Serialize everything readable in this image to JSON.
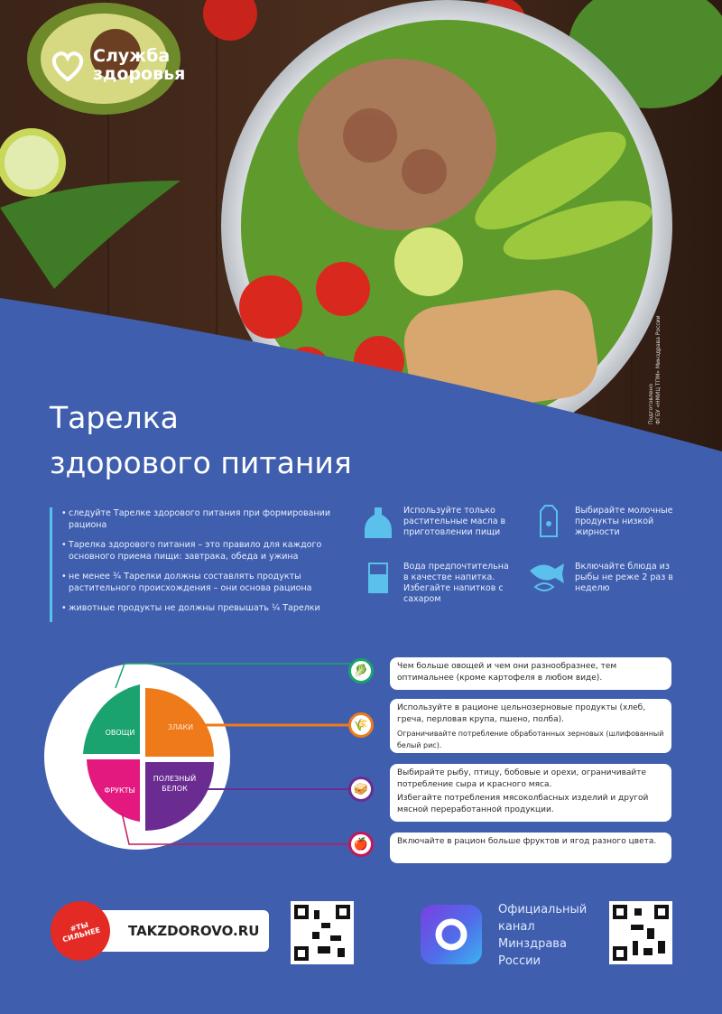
{
  "brand": {
    "name_line1": "Служба",
    "name_line2": "здоровья"
  },
  "credit": {
    "line1": "Подготовлено",
    "line2": "ФГБУ «НМИЦ ТПМ» Минздрава России"
  },
  "title": {
    "line1": "Тарелка",
    "line2": "здорового питания"
  },
  "bullets": [
    "следуйте Тарелке здорового питания при формировании рациона",
    "Тарелка здорового питания – это правило для каждого основного приема пищи: завтрака, обеда и ужина",
    "не менее ¾ Тарелки должны составлять продукты растительного происхождения – они основа рациона",
    "животные продукты не должны превышать ¼ Тарелки"
  ],
  "tips": [
    {
      "icon": "oil-bottle-icon",
      "text": "Используйте только растительные масла в приготовлении пищи"
    },
    {
      "icon": "milk-carton-icon",
      "text": "Выбирайте молочные продукты низкой жирности"
    },
    {
      "icon": "water-glass-icon",
      "text": "Вода предпочтительна в качестве напитка. Избегайте напитков с сахаром"
    },
    {
      "icon": "fish-icon",
      "text": "Включайте блюда из рыбы не реже 2 раз в неделю"
    }
  ],
  "plate": {
    "sections": [
      {
        "label": "ОВОЩИ",
        "color": "#1aa36f"
      },
      {
        "label": "ЗЛАКИ",
        "color": "#ef7a1a"
      },
      {
        "label": "ФРУКТЫ",
        "color": "#e3197f"
      },
      {
        "label": "ПОЛЕЗНЫЙ БЕЛОК",
        "color": "#6a2c91"
      }
    ]
  },
  "advice": [
    {
      "icon": "vegetables-icon",
      "color": "#1aa36f",
      "lines": [
        "Чем больше овощей и чем они разнообразнее, тем оптимальнее (кроме картофеля в любом виде)."
      ]
    },
    {
      "icon": "wheat-icon",
      "color": "#ef7a1a",
      "lines": [
        "Используйте в рационе цельнозерновые продукты (хлеб, греча, перловая крупа, пшено, полба).",
        "Ограничивайте потребление обработанных зерновых (шлифованный белый рис)."
      ]
    },
    {
      "icon": "protein-icon",
      "color": "#6a2c91",
      "lines": [
        "Выбирайте рыбу, птицу, бобовые и орехи, ограничивайте потребление сыра и красного мяса.",
        "Избегайте потребления мясоколбасных изделий и другой мясной переработанной продукции."
      ]
    },
    {
      "icon": "apple-icon",
      "color": "#c2185b",
      "lines": [
        "Включайте в рацион больше фруктов и ягод разного цвета."
      ]
    }
  ],
  "footer": {
    "badge": "#ТЫ СИЛЬНЕЕ",
    "site": "TAKZDOROVO.RU",
    "official": [
      "Официальный",
      "канал",
      "Минздрава",
      "России"
    ]
  }
}
